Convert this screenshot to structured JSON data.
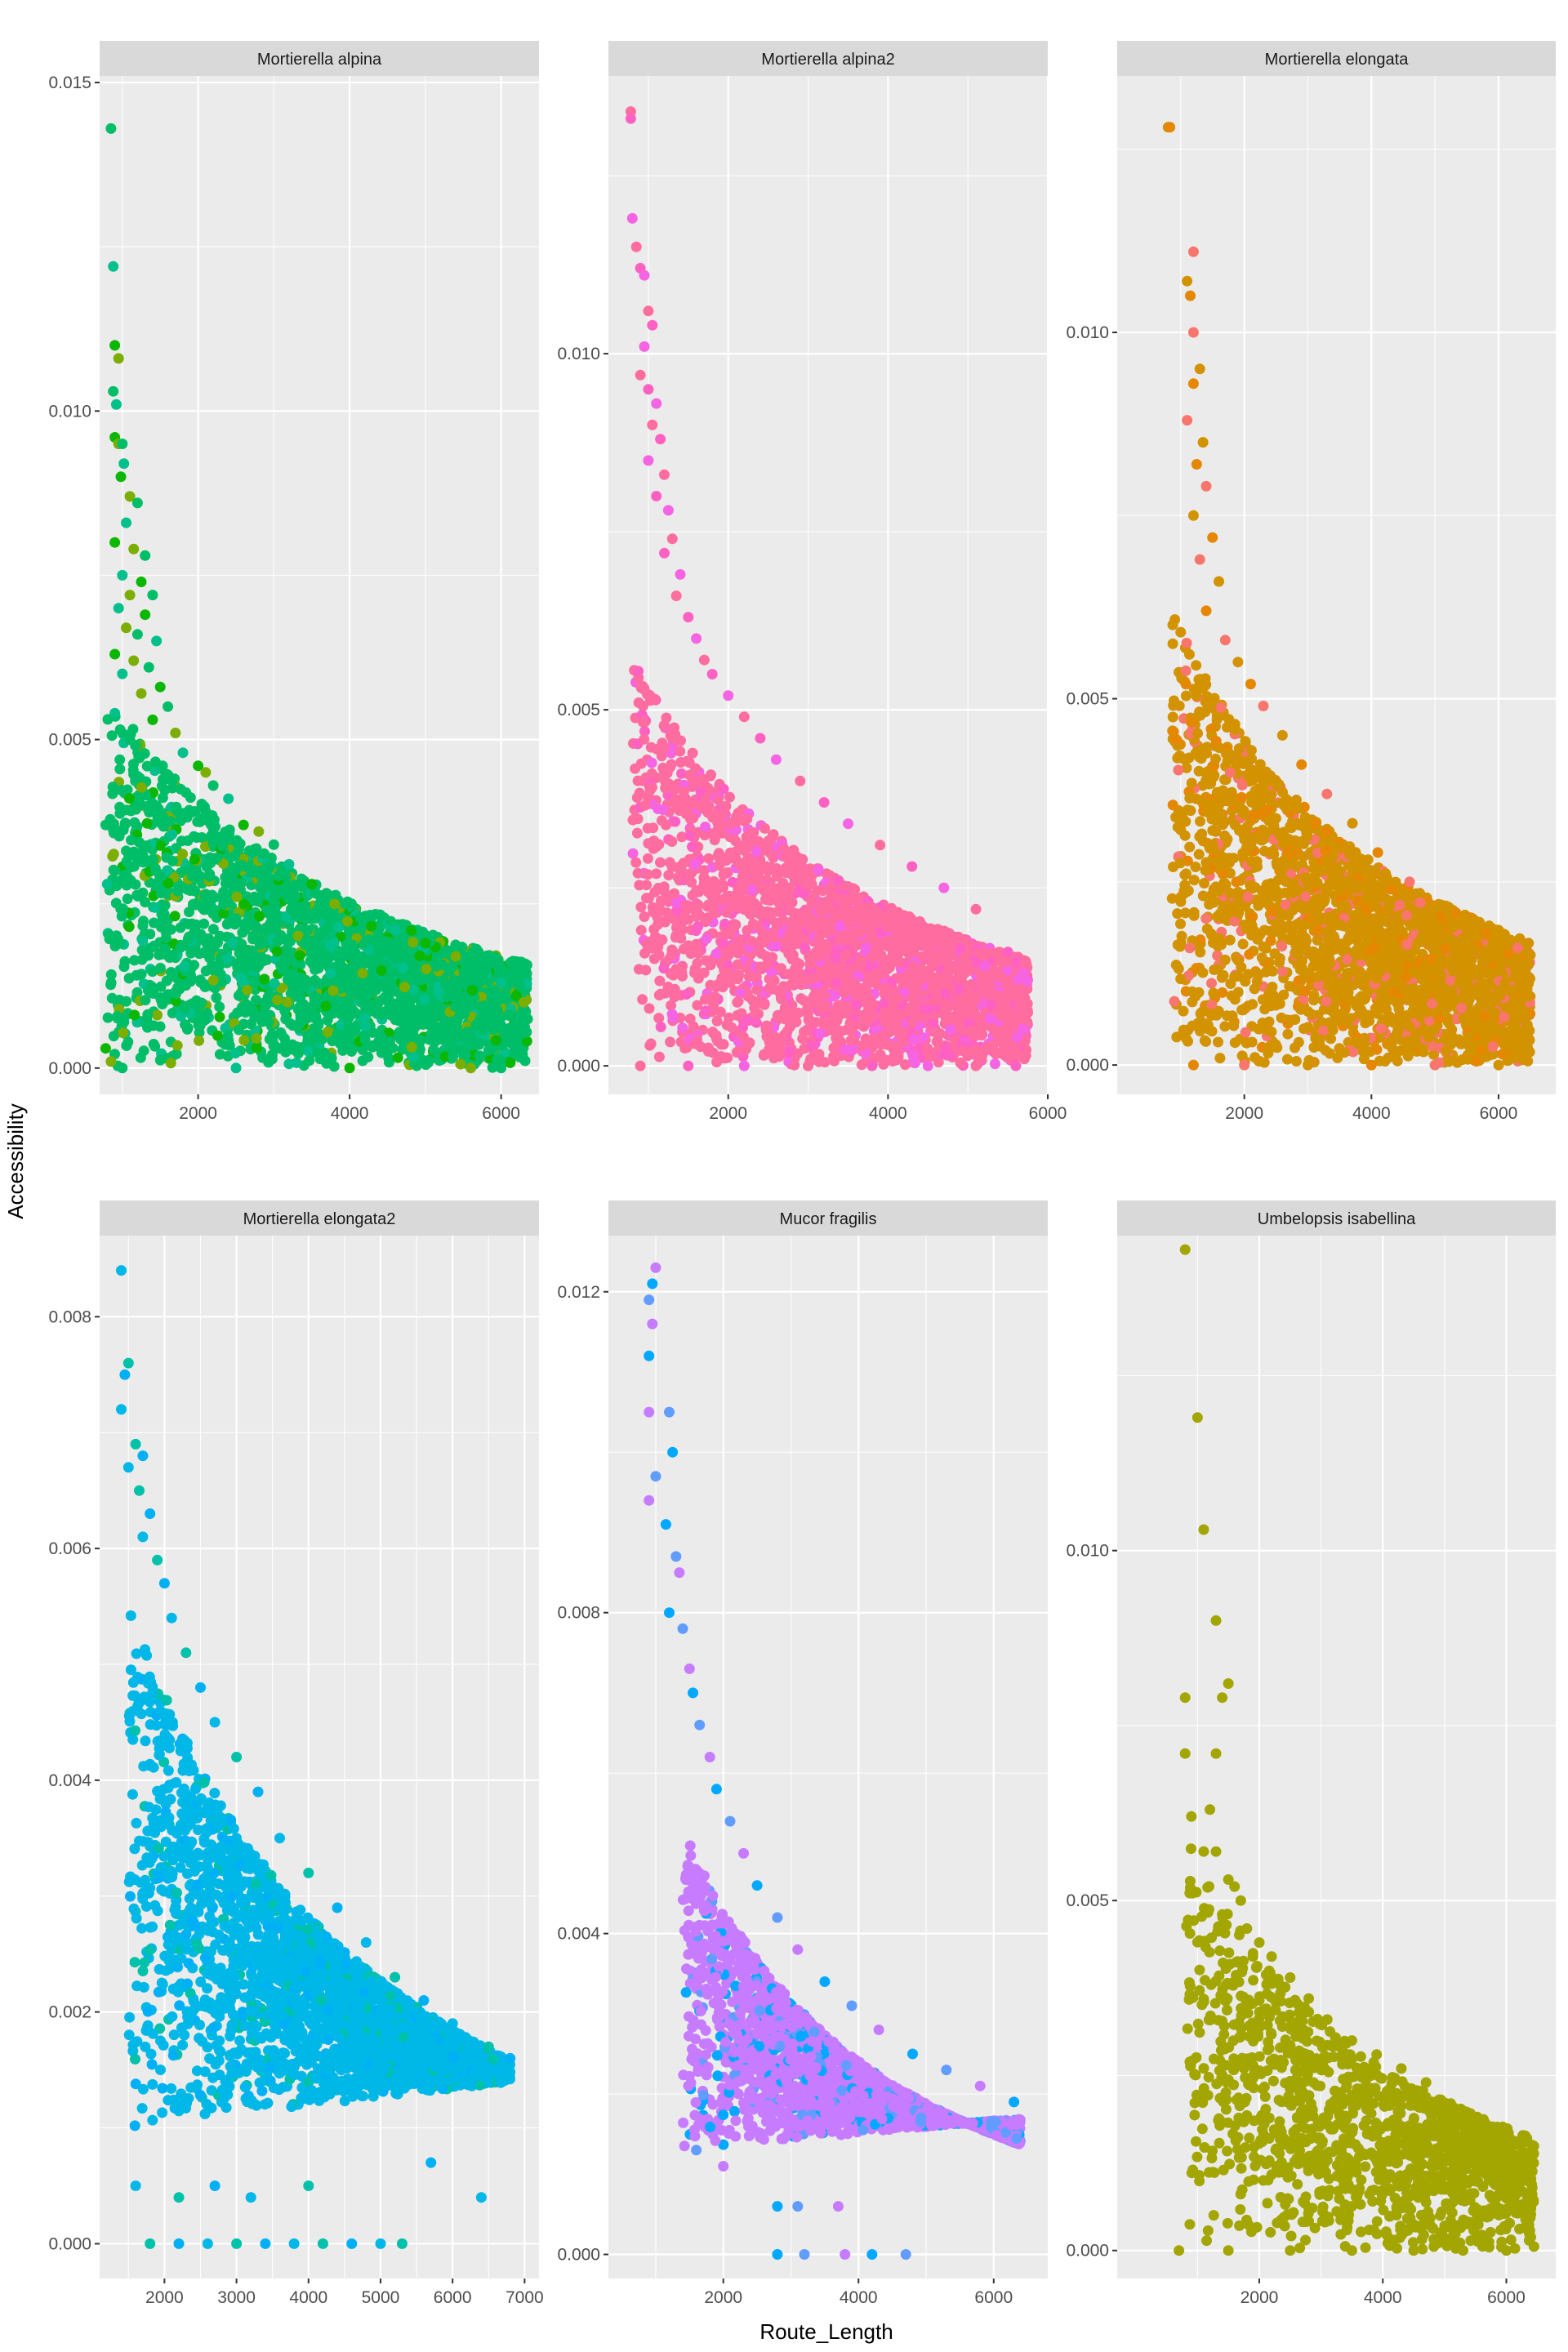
{
  "figure": {
    "xlabel": "Route_Length",
    "ylabel": "Accessibility",
    "background": "#ffffff",
    "panel_background": "#ebebeb",
    "strip_background": "#d9d9d9",
    "gridline_color": "#ffffff"
  },
  "chart_data": [
    {
      "type": "scatter",
      "title": "Mortierella alpina",
      "xticks": [
        2000,
        4000,
        6000
      ],
      "yticks": [
        0.0,
        0.005,
        0.01,
        0.015
      ],
      "ytick_labels": [
        "0.000",
        "0.005",
        "0.010",
        "0.015"
      ],
      "xlim": [
        700,
        6500
      ],
      "ylim": [
        -0.0004,
        0.0151
      ],
      "colors": [
        "#00be67",
        "#00c08b",
        "#0cb702",
        "#7cae00"
      ],
      "grid": true,
      "points": [
        [
          850,
          0.0143
        ],
        [
          880,
          0.0122
        ],
        [
          900,
          0.011
        ],
        [
          950,
          0.0108
        ],
        [
          880,
          0.0103
        ],
        [
          920,
          0.0101
        ],
        [
          900,
          0.0096
        ],
        [
          950,
          0.0095
        ],
        [
          1000,
          0.0095
        ],
        [
          1020,
          0.0092
        ],
        [
          980,
          0.009
        ],
        [
          1100,
          0.0087
        ],
        [
          1200,
          0.0086
        ],
        [
          1050,
          0.0083
        ],
        [
          900,
          0.008
        ],
        [
          1150,
          0.0079
        ],
        [
          1300,
          0.0078
        ],
        [
          1000,
          0.0075
        ],
        [
          1250,
          0.0074
        ],
        [
          1100,
          0.0072
        ],
        [
          1400,
          0.0072
        ],
        [
          950,
          0.007
        ],
        [
          1300,
          0.0069
        ],
        [
          1050,
          0.0067
        ],
        [
          1200,
          0.0066
        ],
        [
          1450,
          0.0065
        ],
        [
          900,
          0.0063
        ],
        [
          1150,
          0.0062
        ],
        [
          1350,
          0.0061
        ],
        [
          1000,
          0.006
        ],
        [
          1500,
          0.0058
        ],
        [
          1250,
          0.0057
        ],
        [
          1600,
          0.0055
        ],
        [
          900,
          0.0054
        ],
        [
          1400,
          0.0053
        ],
        [
          1700,
          0.0051
        ],
        [
          1100,
          0.005
        ],
        [
          1800,
          0.0048
        ],
        [
          2000,
          0.0046
        ],
        [
          2100,
          0.0045
        ],
        [
          2200,
          0.0043
        ],
        [
          2400,
          0.0041
        ],
        [
          2600,
          0.0037
        ],
        [
          2800,
          0.0036
        ],
        [
          3000,
          0.0034
        ],
        [
          3200,
          0.0031
        ],
        [
          3500,
          0.0028
        ],
        [
          3800,
          0.0025
        ],
        [
          4200,
          0.0023
        ],
        [
          4600,
          0.0021
        ],
        [
          5000,
          0.0019
        ],
        [
          5400,
          0.0017
        ],
        [
          5800,
          0.0015
        ],
        [
          6000,
          0.0013
        ],
        [
          6200,
          0.0011
        ],
        [
          6300,
          0.001
        ],
        [
          780,
          0.0037
        ],
        [
          800,
          0.0028
        ],
        [
          780,
          0.0003
        ],
        [
          850,
          0.0001
        ],
        [
          1000,
          0.0
        ],
        [
          2500,
          0.0
        ],
        [
          4000,
          0.0
        ],
        [
          5600,
          0.0
        ],
        [
          6000,
          0.0
        ]
      ],
      "cloud": {
        "xmin": 800,
        "xmax": 6350,
        "ymax_a": 0.0032,
        "ymax_b": 0.0024,
        "floor": 0.0,
        "n": 2600
      }
    },
    {
      "type": "scatter",
      "title": "Mortierella alpina2",
      "xticks": [
        2000,
        4000,
        6000
      ],
      "yticks": [
        0.0,
        0.005,
        0.01
      ],
      "ytick_labels": [
        "0.000",
        "0.005",
        "0.010"
      ],
      "xlim": [
        500,
        6000
      ],
      "ylim": [
        -0.0004,
        0.0139
      ],
      "colors": [
        "#ff6c9f",
        "#ff61c3",
        "#f564e3"
      ],
      "grid": true,
      "points": [
        [
          780,
          0.0134
        ],
        [
          780,
          0.0133
        ],
        [
          800,
          0.0119
        ],
        [
          850,
          0.0115
        ],
        [
          900,
          0.0112
        ],
        [
          950,
          0.0111
        ],
        [
          1000,
          0.0106
        ],
        [
          1050,
          0.0104
        ],
        [
          950,
          0.0101
        ],
        [
          900,
          0.0097
        ],
        [
          1000,
          0.0095
        ],
        [
          1100,
          0.0093
        ],
        [
          1050,
          0.009
        ],
        [
          1150,
          0.0088
        ],
        [
          1000,
          0.0085
        ],
        [
          1200,
          0.0083
        ],
        [
          1100,
          0.008
        ],
        [
          1250,
          0.0078
        ],
        [
          1300,
          0.0074
        ],
        [
          1200,
          0.0072
        ],
        [
          1400,
          0.0069
        ],
        [
          1350,
          0.0066
        ],
        [
          1500,
          0.0063
        ],
        [
          1600,
          0.006
        ],
        [
          1700,
          0.0057
        ],
        [
          1800,
          0.0055
        ],
        [
          2000,
          0.0052
        ],
        [
          2200,
          0.0049
        ],
        [
          2400,
          0.0046
        ],
        [
          2600,
          0.0043
        ],
        [
          2900,
          0.004
        ],
        [
          3200,
          0.0037
        ],
        [
          3500,
          0.0034
        ],
        [
          3900,
          0.0031
        ],
        [
          4300,
          0.0028
        ],
        [
          4700,
          0.0025
        ],
        [
          5100,
          0.0022
        ],
        [
          5500,
          0.0016
        ],
        [
          5700,
          0.0013
        ],
        [
          900,
          0.0
        ],
        [
          1500,
          0.0
        ],
        [
          2200,
          0.0
        ],
        [
          3000,
          0.0
        ],
        [
          3800,
          0.0
        ],
        [
          4500,
          0.0
        ],
        [
          5100,
          0.0
        ],
        [
          5600,
          0.0
        ]
      ],
      "cloud": {
        "xmin": 800,
        "xmax": 5750,
        "ymax_a": 0.0034,
        "ymax_b": 0.0022,
        "floor": 0.0,
        "n": 2600
      }
    },
    {
      "type": "scatter",
      "title": "Mortierella elongata",
      "xticks": [
        2000,
        4000,
        6000
      ],
      "yticks": [
        0.0,
        0.005,
        0.01
      ],
      "ytick_labels": [
        "0.000",
        "0.005",
        "0.010"
      ],
      "xlim": [
        0,
        6900
      ],
      "ylim": [
        -0.0004,
        0.0135
      ],
      "colors": [
        "#d39200",
        "#e58700",
        "#f8766d"
      ],
      "grid": true,
      "points": [
        [
          800,
          0.0128
        ],
        [
          830,
          0.0128
        ],
        [
          1200,
          0.0111
        ],
        [
          1100,
          0.0107
        ],
        [
          1150,
          0.0105
        ],
        [
          1200,
          0.01
        ],
        [
          1300,
          0.0095
        ],
        [
          1200,
          0.0093
        ],
        [
          1100,
          0.0088
        ],
        [
          1350,
          0.0085
        ],
        [
          1250,
          0.0082
        ],
        [
          1400,
          0.0079
        ],
        [
          1200,
          0.0075
        ],
        [
          1500,
          0.0072
        ],
        [
          1300,
          0.0069
        ],
        [
          1600,
          0.0066
        ],
        [
          1400,
          0.0062
        ],
        [
          1700,
          0.0058
        ],
        [
          1900,
          0.0055
        ],
        [
          2100,
          0.0052
        ],
        [
          2300,
          0.0049
        ],
        [
          2600,
          0.0045
        ],
        [
          2900,
          0.0041
        ],
        [
          3300,
          0.0037
        ],
        [
          3700,
          0.0033
        ],
        [
          4100,
          0.0029
        ],
        [
          4600,
          0.0025
        ],
        [
          5200,
          0.0021
        ],
        [
          5800,
          0.0018
        ],
        [
          6300,
          0.0016
        ],
        [
          6500,
          0.0015
        ],
        [
          1200,
          0.0
        ],
        [
          2000,
          0.0
        ],
        [
          3000,
          0.0
        ],
        [
          4000,
          0.0
        ],
        [
          5000,
          0.0
        ],
        [
          6000,
          0.0
        ]
      ],
      "cloud": {
        "xmin": 850,
        "xmax": 6500,
        "ymax_a": 0.0036,
        "ymax_b": 0.0025,
        "floor": 0.0,
        "n": 2600
      }
    },
    {
      "type": "scatter",
      "title": "Mortierella elongata2",
      "xticks": [
        2000,
        3000,
        4000,
        5000,
        6000,
        7000
      ],
      "yticks": [
        0.0,
        0.002,
        0.004,
        0.006,
        0.008
      ],
      "ytick_labels": [
        "0.000",
        "0.002",
        "0.004",
        "0.006",
        "0.008"
      ],
      "xlim": [
        1100,
        7200
      ],
      "ylim": [
        -0.0003,
        0.0087
      ],
      "colors": [
        "#00b8e7",
        "#00c1a9",
        "#00b0f6"
      ],
      "grid": true,
      "points": [
        [
          1400,
          0.0084
        ],
        [
          1500,
          0.0076
        ],
        [
          1450,
          0.0075
        ],
        [
          1400,
          0.0072
        ],
        [
          1600,
          0.0069
        ],
        [
          1700,
          0.0068
        ],
        [
          1500,
          0.0067
        ],
        [
          1650,
          0.0065
        ],
        [
          1800,
          0.0063
        ],
        [
          1700,
          0.0061
        ],
        [
          1900,
          0.0059
        ],
        [
          2000,
          0.0057
        ],
        [
          2100,
          0.0054
        ],
        [
          2300,
          0.0051
        ],
        [
          2500,
          0.0048
        ],
        [
          2700,
          0.0045
        ],
        [
          3000,
          0.0042
        ],
        [
          3300,
          0.0039
        ],
        [
          3600,
          0.0035
        ],
        [
          4000,
          0.0032
        ],
        [
          4400,
          0.0029
        ],
        [
          4800,
          0.0026
        ],
        [
          5200,
          0.0023
        ],
        [
          5600,
          0.0021
        ],
        [
          6000,
          0.0019
        ],
        [
          6500,
          0.0017
        ],
        [
          6800,
          0.0016
        ],
        [
          1600,
          0.0005
        ],
        [
          2200,
          0.0004
        ],
        [
          2700,
          0.0005
        ],
        [
          3200,
          0.0004
        ],
        [
          4000,
          0.0005
        ],
        [
          5700,
          0.0007
        ],
        [
          6400,
          0.0004
        ],
        [
          1800,
          0.0
        ],
        [
          2200,
          0.0
        ],
        [
          2600,
          0.0
        ],
        [
          3000,
          0.0
        ],
        [
          3400,
          0.0
        ],
        [
          3800,
          0.0
        ],
        [
          4200,
          0.0
        ],
        [
          4600,
          0.0
        ],
        [
          5000,
          0.0
        ],
        [
          5300,
          0.0
        ]
      ],
      "cloud": {
        "xmin": 1500,
        "xmax": 6800,
        "ymax_a": 0.003,
        "ymax_b": 0.0024,
        "floor": 0.001,
        "n": 2800
      }
    },
    {
      "type": "scatter",
      "title": "Mucor fragilis",
      "xticks": [
        2000,
        4000,
        6000
      ],
      "yticks": [
        0.0,
        0.004,
        0.008,
        0.012
      ],
      "ytick_labels": [
        "0.000",
        "0.004",
        "0.008",
        "0.012"
      ],
      "xlim": [
        300,
        6800
      ],
      "ylim": [
        -0.0003,
        0.0127
      ],
      "colors": [
        "#c77cff",
        "#00a9ff",
        "#619cff"
      ],
      "grid": true,
      "points": [
        [
          1000,
          0.0123
        ],
        [
          950,
          0.0121
        ],
        [
          900,
          0.0119
        ],
        [
          950,
          0.0116
        ],
        [
          900,
          0.0112
        ],
        [
          1200,
          0.0105
        ],
        [
          900,
          0.0105
        ],
        [
          1250,
          0.01
        ],
        [
          1000,
          0.0097
        ],
        [
          900,
          0.0094
        ],
        [
          1150,
          0.0091
        ],
        [
          1300,
          0.0087
        ],
        [
          1350,
          0.0085
        ],
        [
          1200,
          0.008
        ],
        [
          1400,
          0.0078
        ],
        [
          1500,
          0.0073
        ],
        [
          1550,
          0.007
        ],
        [
          1650,
          0.0066
        ],
        [
          1800,
          0.0062
        ],
        [
          1900,
          0.0058
        ],
        [
          2100,
          0.0054
        ],
        [
          2300,
          0.005
        ],
        [
          2500,
          0.0046
        ],
        [
          2800,
          0.0042
        ],
        [
          3100,
          0.0038
        ],
        [
          3500,
          0.0034
        ],
        [
          3900,
          0.0031
        ],
        [
          4300,
          0.0028
        ],
        [
          4800,
          0.0025
        ],
        [
          5300,
          0.0023
        ],
        [
          5800,
          0.0021
        ],
        [
          6300,
          0.0019
        ],
        [
          1600,
          0.0013
        ],
        [
          2000,
          0.0011
        ],
        [
          2800,
          0.0006
        ],
        [
          3100,
          0.0006
        ],
        [
          3700,
          0.0006
        ],
        [
          2800,
          0.0
        ],
        [
          3200,
          0.0
        ],
        [
          3800,
          0.0
        ],
        [
          4200,
          0.0
        ],
        [
          4700,
          0.0
        ]
      ],
      "cloud": {
        "xmin": 1400,
        "xmax": 6400,
        "ymax_a": 0.0032,
        "ymax_b": 0.002,
        "floor": 0.0013,
        "n": 2400
      }
    },
    {
      "type": "scatter",
      "title": "Umbelopsis isabellina",
      "xticks": [
        2000,
        4000,
        6000
      ],
      "yticks": [
        0.0,
        0.005,
        0.01
      ],
      "ytick_labels": [
        "0.000",
        "0.005",
        "0.010"
      ],
      "xlim": [
        -300,
        6800
      ],
      "ylim": [
        -0.0004,
        0.0145
      ],
      "colors": [
        "#a3a500"
      ],
      "grid": true,
      "points": [
        [
          800,
          0.0143
        ],
        [
          1000,
          0.0119
        ],
        [
          1100,
          0.0103
        ],
        [
          1300,
          0.009
        ],
        [
          800,
          0.0079
        ],
        [
          1500,
          0.0081
        ],
        [
          1400,
          0.0079
        ],
        [
          800,
          0.0071
        ],
        [
          1300,
          0.0071
        ],
        [
          1200,
          0.0063
        ],
        [
          900,
          0.0062
        ],
        [
          1100,
          0.0057
        ],
        [
          1300,
          0.0057
        ],
        [
          1500,
          0.0053
        ],
        [
          1600,
          0.0052
        ],
        [
          1700,
          0.005
        ],
        [
          1400,
          0.0048
        ],
        [
          1800,
          0.0046
        ],
        [
          2000,
          0.0044
        ],
        [
          2200,
          0.0042
        ],
        [
          2500,
          0.0039
        ],
        [
          2800,
          0.0036
        ],
        [
          3100,
          0.0033
        ],
        [
          3500,
          0.003
        ],
        [
          3900,
          0.0028
        ],
        [
          4300,
          0.0026
        ],
        [
          4700,
          0.0024
        ],
        [
          5100,
          0.0021
        ],
        [
          5600,
          0.0016
        ],
        [
          6000,
          0.0015
        ],
        [
          6400,
          0.0013
        ],
        [
          700,
          0.0
        ],
        [
          1500,
          0.0
        ],
        [
          2500,
          0.0
        ],
        [
          3500,
          0.0
        ],
        [
          4500,
          0.0
        ],
        [
          5300,
          0.0
        ],
        [
          6000,
          0.0
        ]
      ],
      "cloud": {
        "xmin": 800,
        "xmax": 6450,
        "ymax_a": 0.0034,
        "ymax_b": 0.0024,
        "floor": 0.0,
        "n": 1400
      }
    }
  ]
}
